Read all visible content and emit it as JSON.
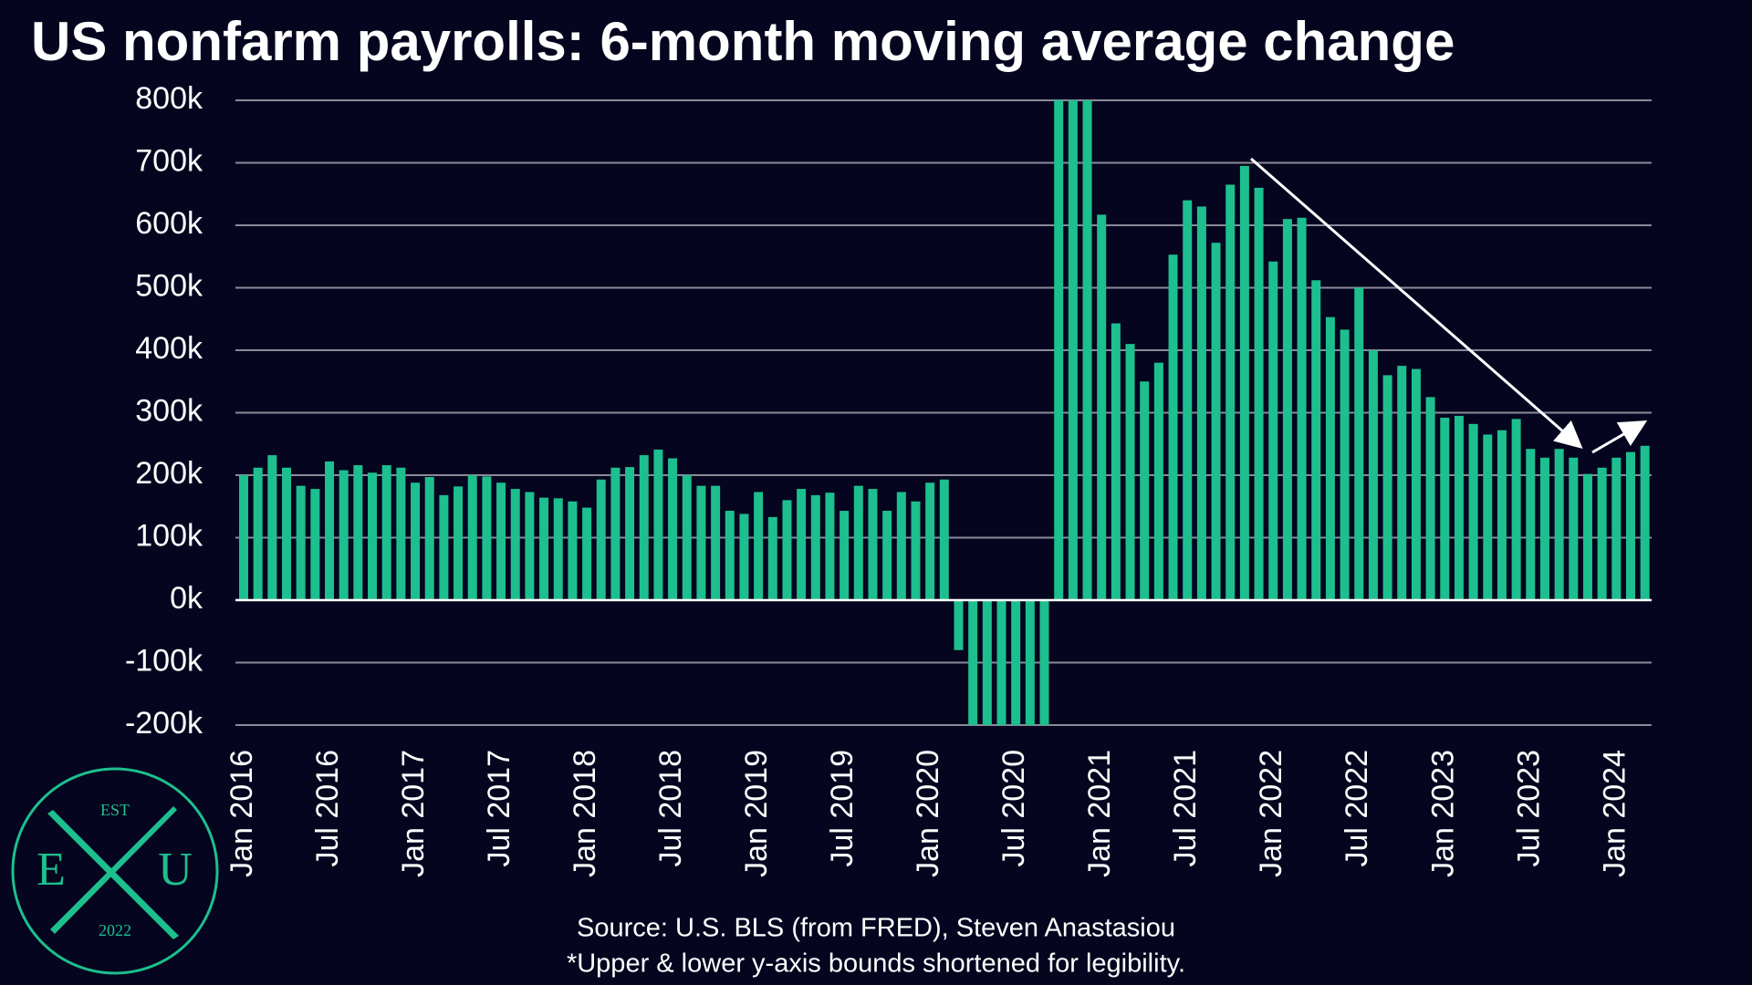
{
  "chart_data": {
    "type": "bar",
    "title": "US nonfarm payrolls: 6-month moving average change",
    "categories": [
      "Jan 2016",
      null,
      null,
      null,
      null,
      null,
      "Jul 2016",
      null,
      null,
      null,
      null,
      null,
      "Jan 2017",
      null,
      null,
      null,
      null,
      null,
      "Jul 2017",
      null,
      null,
      null,
      null,
      null,
      "Jan 2018",
      null,
      null,
      null,
      null,
      null,
      "Jul 2018",
      null,
      null,
      null,
      null,
      null,
      "Jan 2019",
      null,
      null,
      null,
      null,
      null,
      "Jul 2019",
      null,
      null,
      null,
      null,
      null,
      "Jan 2020",
      null,
      null,
      null,
      null,
      null,
      "Jul 2020",
      null,
      null,
      null,
      null,
      null,
      "Jan 2021",
      null,
      null,
      null,
      null,
      null,
      "Jul 2021",
      null,
      null,
      null,
      null,
      null,
      "Jan 2022",
      null,
      null,
      null,
      null,
      null,
      "Jul 2022",
      null,
      null,
      null,
      null,
      null,
      "Jan 2023",
      null,
      null,
      null,
      null,
      null,
      "Jul 2023",
      null,
      null,
      null,
      null,
      null,
      "Jan 2024",
      null,
      null
    ],
    "values": [
      200000,
      212000,
      232000,
      212000,
      183000,
      178000,
      222000,
      208000,
      216000,
      204000,
      216000,
      212000,
      188000,
      197000,
      168000,
      182000,
      200000,
      198000,
      188000,
      178000,
      173000,
      164000,
      163000,
      158000,
      148000,
      193000,
      212000,
      213000,
      232000,
      241000,
      227000,
      200000,
      183000,
      183000,
      143000,
      138000,
      173000,
      133000,
      160000,
      178000,
      168000,
      172000,
      143000,
      183000,
      178000,
      143000,
      173000,
      158000,
      188000,
      193000,
      -80000,
      -200000,
      -200000,
      -200000,
      -200000,
      -200000,
      -200000,
      800000,
      800000,
      800000,
      617000,
      443000,
      410000,
      350000,
      380000,
      553000,
      640000,
      630000,
      572000,
      665000,
      695000,
      660000,
      542000,
      610000,
      612000,
      512000,
      453000,
      433000,
      500000,
      400000,
      360000,
      375000,
      370000,
      325000,
      292000,
      295000,
      282000,
      265000,
      272000,
      290000,
      242000,
      228000,
      242000,
      228000,
      202000,
      212000,
      228000,
      237000,
      247000
    ],
    "color": "#1dbf8e",
    "ylim": [
      -200000,
      800000
    ],
    "yticks": [
      {
        "value": -200000,
        "label": "-200k"
      },
      {
        "value": -100000,
        "label": "-100k"
      },
      {
        "value": 0,
        "label": "0k"
      },
      {
        "value": 100000,
        "label": "100k"
      },
      {
        "value": 200000,
        "label": "200k"
      },
      {
        "value": 300000,
        "label": "300k"
      },
      {
        "value": 400000,
        "label": "400k"
      },
      {
        "value": 500000,
        "label": "500k"
      },
      {
        "value": 600000,
        "label": "600k"
      },
      {
        "value": 700000,
        "label": "700k"
      },
      {
        "value": 800000,
        "label": "800k"
      }
    ],
    "grid": true,
    "source": "Source: U.S. BLS (from FRED), Steven Anastasiou",
    "note": "*Upper & lower y-axis bounds shortened for legibility."
  },
  "logo": {
    "top": "EST",
    "left": "E",
    "right": "U",
    "bottom": "2022"
  }
}
